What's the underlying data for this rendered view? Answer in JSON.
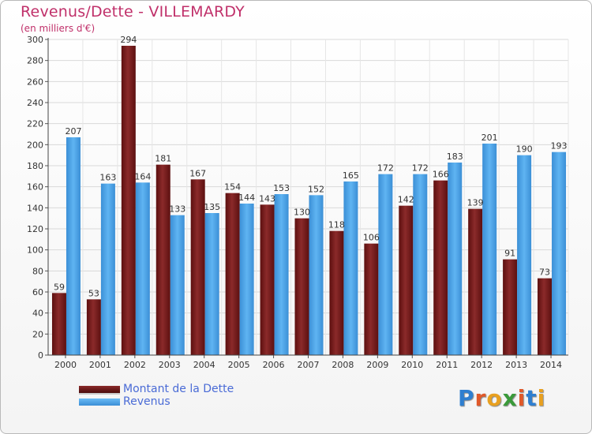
{
  "title": "Revenus/Dette - VILLEMARDY",
  "subtitle": "(en milliers d'€)",
  "logo": "Proxiti",
  "colors": {
    "dette": "#7a1a1a",
    "revenus": "#4aa3e8",
    "title": "#c0306a",
    "legend_text": "#4a6bd6"
  },
  "chart_data": {
    "type": "bar",
    "title": "Revenus/Dette - VILLEMARDY",
    "ylabel": "(en milliers d'€)",
    "categories": [
      "2000",
      "2001",
      "2002",
      "2003",
      "2004",
      "2005",
      "2006",
      "2007",
      "2008",
      "2009",
      "2010",
      "2011",
      "2012",
      "2013",
      "2014"
    ],
    "series": [
      {
        "name": "Montant de la Dette",
        "values": [
          59,
          53,
          294,
          181,
          167,
          154,
          143,
          130,
          118,
          106,
          142,
          166,
          139,
          91,
          73
        ]
      },
      {
        "name": "Revenus",
        "values": [
          207,
          163,
          164,
          133,
          135,
          144,
          153,
          152,
          165,
          172,
          172,
          183,
          201,
          190,
          193
        ]
      }
    ],
    "ylim": [
      0,
      300
    ],
    "yticks": [
      0,
      20,
      40,
      60,
      80,
      100,
      120,
      140,
      160,
      180,
      200,
      220,
      240,
      260,
      280,
      300
    ],
    "grid": true,
    "legend": "bottom-left"
  }
}
